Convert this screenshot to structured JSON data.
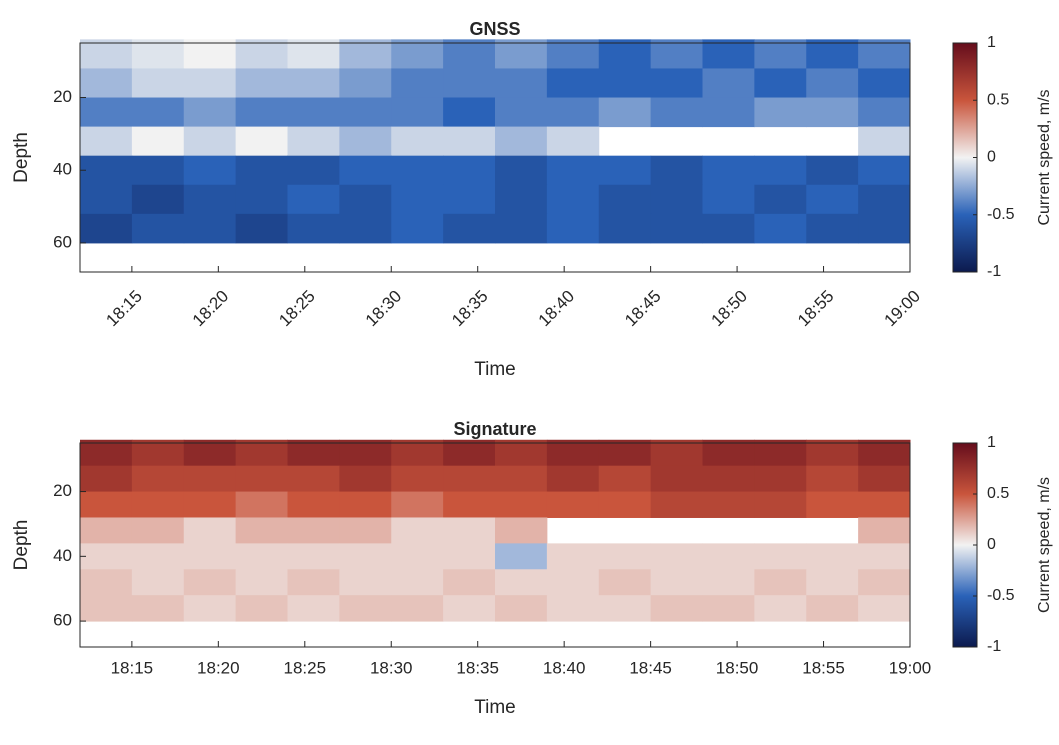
{
  "chart_data": [
    {
      "type": "heatmap",
      "title": "GNSS",
      "xlabel": "Time",
      "ylabel": "Depth",
      "x": [
        "18:12",
        "18:15",
        "18:18",
        "18:21",
        "18:24",
        "18:27",
        "18:30",
        "18:33",
        "18:36",
        "18:39",
        "18:42",
        "18:45",
        "18:48",
        "18:51",
        "18:54",
        "18:57"
      ],
      "y": [
        8,
        16,
        24,
        32,
        40,
        48,
        56
      ],
      "z": [
        [
          -0.1,
          -0.05,
          0,
          -0.1,
          -0.05,
          -0.2,
          -0.3,
          -0.4,
          -0.3,
          -0.4,
          -0.5,
          -0.4,
          -0.5,
          -0.4,
          -0.5,
          -0.4
        ],
        [
          -0.2,
          -0.1,
          -0.1,
          -0.2,
          -0.2,
          -0.3,
          -0.4,
          -0.4,
          -0.4,
          -0.5,
          -0.5,
          -0.5,
          -0.4,
          -0.5,
          -0.4,
          -0.5
        ],
        [
          -0.4,
          -0.4,
          -0.3,
          -0.4,
          -0.4,
          -0.4,
          -0.4,
          -0.5,
          -0.4,
          -0.4,
          -0.3,
          -0.4,
          -0.4,
          -0.3,
          -0.3,
          -0.4
        ],
        [
          -0.1,
          0,
          -0.1,
          0,
          -0.1,
          -0.2,
          -0.1,
          -0.1,
          -0.2,
          -0.1,
          null,
          null,
          null,
          null,
          null,
          -0.1
        ],
        [
          -0.6,
          -0.6,
          -0.5,
          -0.6,
          -0.6,
          -0.5,
          -0.5,
          -0.5,
          -0.6,
          -0.5,
          -0.5,
          -0.6,
          -0.5,
          -0.5,
          -0.6,
          -0.5
        ],
        [
          -0.6,
          -0.7,
          -0.6,
          -0.6,
          -0.5,
          -0.6,
          -0.5,
          -0.5,
          -0.6,
          -0.5,
          -0.6,
          -0.6,
          -0.5,
          -0.6,
          -0.5,
          -0.6
        ],
        [
          -0.7,
          -0.6,
          -0.6,
          -0.7,
          -0.6,
          -0.6,
          -0.5,
          -0.6,
          -0.6,
          -0.5,
          -0.6,
          -0.6,
          -0.6,
          -0.5,
          -0.6,
          -0.6
        ]
      ],
      "xlim": [
        "18:12",
        "19:00"
      ],
      "xticks": [
        "18:15",
        "18:20",
        "18:25",
        "18:30",
        "18:35",
        "18:40",
        "18:45",
        "18:50",
        "18:55",
        "19:00"
      ],
      "xtick_rotation": -45,
      "ylim": [
        5,
        68
      ],
      "yticks": [
        20,
        40,
        60
      ],
      "y_reversed": true,
      "colorbar": {
        "label": "Current speed, m/s",
        "clim": [
          -1,
          1
        ],
        "ticks": [
          -1,
          -0.5,
          0,
          0.5,
          1
        ],
        "colormap": [
          "#0c1a4e",
          "#2a62b8",
          "#f2f2f2",
          "#c9553c",
          "#650d1c"
        ]
      }
    },
    {
      "type": "heatmap",
      "title": "Signature",
      "xlabel": "Time",
      "ylabel": "Depth",
      "x": [
        "18:12",
        "18:15",
        "18:18",
        "18:21",
        "18:24",
        "18:27",
        "18:30",
        "18:33",
        "18:36",
        "18:39",
        "18:42",
        "18:45",
        "18:48",
        "18:51",
        "18:54",
        "18:57"
      ],
      "y": [
        8,
        16,
        24,
        32,
        40,
        48,
        56
      ],
      "z": [
        [
          0.8,
          0.7,
          0.8,
          0.7,
          0.8,
          0.8,
          0.7,
          0.8,
          0.7,
          0.8,
          0.8,
          0.7,
          0.8,
          0.8,
          0.7,
          0.8
        ],
        [
          0.7,
          0.6,
          0.6,
          0.6,
          0.6,
          0.7,
          0.6,
          0.6,
          0.6,
          0.7,
          0.6,
          0.7,
          0.7,
          0.7,
          0.6,
          0.7
        ],
        [
          0.5,
          0.5,
          0.5,
          0.4,
          0.5,
          0.5,
          0.4,
          0.5,
          0.5,
          0.5,
          0.5,
          0.6,
          0.6,
          0.6,
          0.5,
          0.5
        ],
        [
          0.2,
          0.2,
          0.1,
          0.2,
          0.2,
          0.2,
          0.1,
          0.1,
          0.2,
          null,
          null,
          null,
          null,
          null,
          null,
          0.2
        ],
        [
          0.1,
          0.1,
          0.1,
          0.1,
          0.1,
          0.1,
          0.1,
          0.1,
          -0.2,
          0.1,
          0.1,
          0.1,
          0.1,
          0.1,
          0.1,
          0.1
        ],
        [
          0.15,
          0.1,
          0.15,
          0.1,
          0.15,
          0.1,
          0.1,
          0.15,
          0.1,
          0.1,
          0.15,
          0.1,
          0.1,
          0.15,
          0.1,
          0.15
        ],
        [
          0.15,
          0.15,
          0.1,
          0.15,
          0.1,
          0.15,
          0.15,
          0.1,
          0.15,
          0.1,
          0.1,
          0.15,
          0.15,
          0.1,
          0.15,
          0.1
        ]
      ],
      "xlim": [
        "18:12",
        "19:00"
      ],
      "xticks": [
        "18:15",
        "18:20",
        "18:25",
        "18:30",
        "18:35",
        "18:40",
        "18:45",
        "18:50",
        "18:55",
        "19:00"
      ],
      "xtick_rotation": 0,
      "ylim": [
        5,
        68
      ],
      "yticks": [
        20,
        40,
        60
      ],
      "y_reversed": true,
      "colorbar": {
        "label": "Current speed, m/s",
        "clim": [
          -1,
          1
        ],
        "ticks": [
          -1,
          -0.5,
          0,
          0.5,
          1
        ],
        "colormap": [
          "#0c1a4e",
          "#2a62b8",
          "#f2f2f2",
          "#c9553c",
          "#650d1c"
        ]
      }
    }
  ]
}
